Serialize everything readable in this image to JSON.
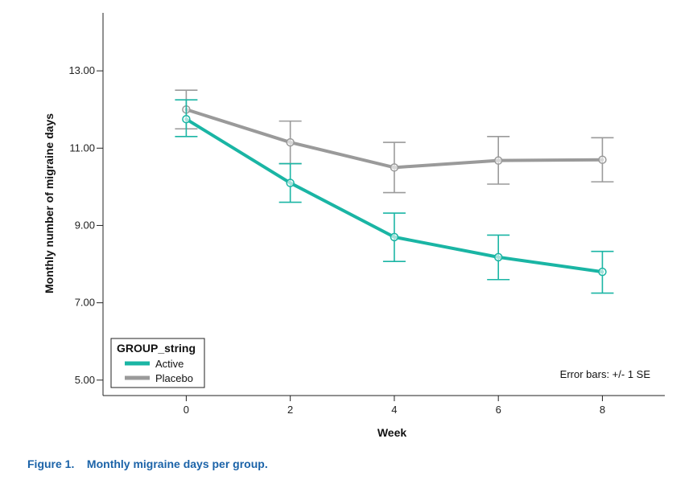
{
  "caption": {
    "label": "Figure 1.",
    "text": "Monthly migraine days per group."
  },
  "chart_data": {
    "type": "line",
    "xlabel": "Week",
    "ylabel": "Monthly number of migraine days",
    "x": [
      0,
      2,
      4,
      6,
      8
    ],
    "x_ticks": [
      "0",
      "2",
      "4",
      "6",
      "8"
    ],
    "y_ticks": [
      "5.00",
      "7.00",
      "9.00",
      "11.00",
      "13.00"
    ],
    "xlim": [
      -1.6,
      9.2
    ],
    "ylim": [
      4.6,
      14.5
    ],
    "legend_title": "GROUP_string",
    "legend_position": "bottom-left",
    "note": "Error bars: +/- 1 SE",
    "series": [
      {
        "name": "Active",
        "color": "#1ab5a4",
        "values": [
          11.75,
          10.1,
          8.7,
          8.18,
          7.8
        ],
        "err_low": [
          11.3,
          9.6,
          8.07,
          7.6,
          7.25
        ],
        "err_high": [
          12.25,
          10.6,
          9.32,
          8.75,
          8.33
        ]
      },
      {
        "name": "Placebo",
        "color": "#9a9a9a",
        "values": [
          12.0,
          11.15,
          10.5,
          10.68,
          10.7
        ],
        "err_low": [
          11.5,
          10.6,
          9.85,
          10.07,
          10.13
        ],
        "err_high": [
          12.5,
          11.7,
          11.15,
          11.3,
          11.27
        ]
      }
    ]
  }
}
